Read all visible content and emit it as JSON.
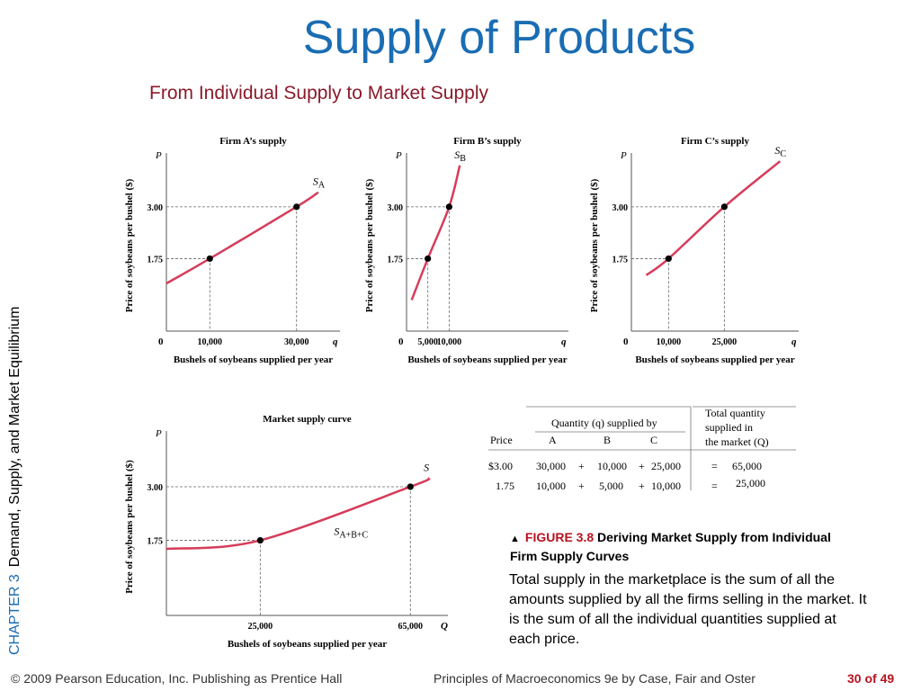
{
  "slide": {
    "title": "Supply of Products",
    "subtitle": "From Individual Supply to Market Supply",
    "chapter_label": "CHAPTER 3",
    "chapter_title": "Demand, Supply, and Market Equilibrium",
    "figure_label": "FIGURE 3.8",
    "figure_title": "Deriving Market Supply from Individual Firm Supply Curves",
    "figure_text": "Total supply in the marketplace is the sum of all the amounts supplied by all the firms selling in the market. It is the sum of all the individual quantities supplied at each price.",
    "footer_left": "© 2009 Pearson Education, Inc. Publishing as Prentice Hall",
    "footer_mid": "Principles of Macroeconomics 9e by Case, Fair and Oster",
    "page_number": "30 of 49"
  },
  "colors": {
    "title": "#1a6db3",
    "subtitle": "#8a1a2a",
    "curve": "#d63c5a",
    "figure_label": "#b8121f"
  },
  "chart_data": [
    {
      "type": "line",
      "title": "Firm A’s supply",
      "ylabel": "Price of soybeans per bushel ($)",
      "xlabel": "Bushels of soybeans supplied per year",
      "y_axis_symbol": "P",
      "x_axis_symbol": "q",
      "origin_label": "0",
      "curve_label_main": "S",
      "curve_label_sub": "A",
      "series": [
        {
          "name": "S_A",
          "points": [
            {
              "x": 0,
              "y": 1.15
            },
            {
              "x": 10000,
              "y": 1.75
            },
            {
              "x": 30000,
              "y": 3.0
            },
            {
              "x": 35000,
              "y": 3.35
            }
          ]
        }
      ],
      "marked_points": [
        {
          "x": 10000,
          "y": 1.75
        },
        {
          "x": 30000,
          "y": 3.0
        }
      ],
      "x_ticks": [
        {
          "v": 10000,
          "label": "10,000"
        },
        {
          "v": 30000,
          "label": "30,000"
        }
      ],
      "y_ticks": [
        {
          "v": 1.75,
          "label": "1.75"
        },
        {
          "v": 3.0,
          "label": "3.00"
        }
      ],
      "xlim": [
        0,
        40000
      ],
      "ylim": [
        0,
        4.3
      ]
    },
    {
      "type": "line",
      "title": "Firm B’s supply",
      "ylabel": "Price of soybeans per bushel ($)",
      "xlabel": "Bushels of soybeans supplied per year",
      "y_axis_symbol": "P",
      "x_axis_symbol": "q",
      "origin_label": "0",
      "curve_label_main": "S",
      "curve_label_sub": "B",
      "series": [
        {
          "name": "S_B",
          "points": [
            {
              "x": 1200,
              "y": 0.75
            },
            {
              "x": 5000,
              "y": 1.75
            },
            {
              "x": 10000,
              "y": 3.0
            },
            {
              "x": 12500,
              "y": 4.0
            }
          ]
        }
      ],
      "marked_points": [
        {
          "x": 5000,
          "y": 1.75
        },
        {
          "x": 10000,
          "y": 3.0
        }
      ],
      "x_ticks": [
        {
          "v": 5000,
          "label": "5,000"
        },
        {
          "v": 10000,
          "label": "10,000"
        }
      ],
      "y_ticks": [
        {
          "v": 1.75,
          "label": "1.75"
        },
        {
          "v": 3.0,
          "label": "3.00"
        }
      ],
      "xlim": [
        0,
        38000
      ],
      "ylim": [
        0,
        4.3
      ]
    },
    {
      "type": "line",
      "title": "Firm C’s supply",
      "ylabel": "Price of soybeans per bushel ($)",
      "xlabel": "Bushels of soybeans supplied per year",
      "y_axis_symbol": "P",
      "x_axis_symbol": "q",
      "origin_label": "0",
      "curve_label_main": "S",
      "curve_label_sub": "C",
      "series": [
        {
          "name": "S_C",
          "points": [
            {
              "x": 4000,
              "y": 1.35
            },
            {
              "x": 10000,
              "y": 1.75
            },
            {
              "x": 25000,
              "y": 3.0
            },
            {
              "x": 40000,
              "y": 4.1
            }
          ]
        }
      ],
      "marked_points": [
        {
          "x": 10000,
          "y": 1.75
        },
        {
          "x": 25000,
          "y": 3.0
        }
      ],
      "x_ticks": [
        {
          "v": 10000,
          "label": "10,000"
        },
        {
          "v": 25000,
          "label": "25,000"
        }
      ],
      "y_ticks": [
        {
          "v": 1.75,
          "label": "1.75"
        },
        {
          "v": 3.0,
          "label": "3.00"
        }
      ],
      "xlim": [
        0,
        45000
      ],
      "ylim": [
        0,
        4.3
      ]
    },
    {
      "type": "line",
      "title": "Market supply curve",
      "ylabel": "Price of soybeans per bushel ($)",
      "xlabel": "Bushels of soybeans supplied per year",
      "y_axis_symbol": "P",
      "x_axis_symbol": "Q",
      "origin_label": "",
      "curve_label_main": "S",
      "curve_label_sub": "",
      "inner_label_main": "S",
      "inner_label_sub": "A+B+C",
      "series": [
        {
          "name": "S",
          "points": [
            {
              "x": 0,
              "y": 1.55
            },
            {
              "x": 25000,
              "y": 1.75
            },
            {
              "x": 65000,
              "y": 3.0
            },
            {
              "x": 70000,
              "y": 3.2
            }
          ]
        }
      ],
      "marked_points": [
        {
          "x": 25000,
          "y": 1.75
        },
        {
          "x": 65000,
          "y": 3.0
        }
      ],
      "x_ticks": [
        {
          "v": 25000,
          "label": "25,000"
        },
        {
          "v": 65000,
          "label": "65,000"
        }
      ],
      "y_ticks": [
        {
          "v": 1.75,
          "label": "1.75"
        },
        {
          "v": 3.0,
          "label": "3.00"
        }
      ],
      "xlim": [
        0,
        75000
      ],
      "ylim": [
        0,
        4.3
      ]
    }
  ],
  "table": {
    "header_group": "Quantity (q) supplied by",
    "header_total": [
      "Total quantity",
      "supplied in",
      "the market (Q)"
    ],
    "columns": [
      "Price",
      "A",
      "B",
      "C"
    ],
    "rows": [
      {
        "price": "$3.00",
        "a": "30,000",
        "b": "10,000",
        "c": "25,000",
        "total": "65,000"
      },
      {
        "price": "1.75",
        "a": "10,000",
        "b": "5,000",
        "c": "10,000",
        "total": "25,000"
      }
    ],
    "plus": "+",
    "equals": "="
  }
}
